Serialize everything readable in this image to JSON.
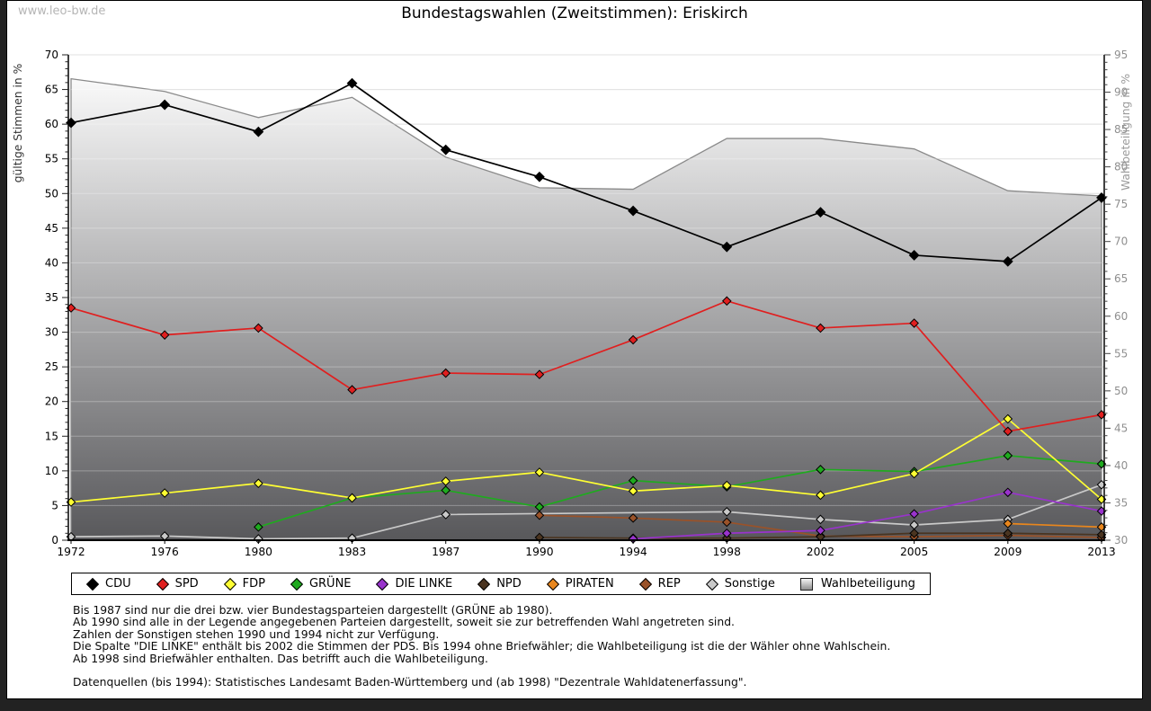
{
  "header": {
    "watermark": "www.leo-bw.de",
    "title": "Bundestagswahlen (Zweitstimmen): Eriskirch"
  },
  "chart_data": {
    "type": "line",
    "x": [
      1972,
      1976,
      1980,
      1983,
      1987,
      1990,
      1994,
      1998,
      2002,
      2005,
      2009,
      2013
    ],
    "ylabel_left": "gültige Stimmen in %",
    "ylabel_right": "Wahlbeteiligung in %",
    "ylim_left": [
      0,
      70
    ],
    "ylim_right": [
      30,
      95
    ],
    "grid": true,
    "legend_position": "bottom",
    "series": [
      {
        "name": "CDU",
        "color": "#000000",
        "marker": "diamond",
        "axis": "left",
        "values": [
          60.2,
          62.8,
          58.9,
          65.9,
          56.3,
          52.4,
          47.5,
          42.3,
          47.3,
          41.1,
          40.2,
          49.4
        ]
      },
      {
        "name": "SPD",
        "color": "#e01f1f",
        "marker": "diamond",
        "axis": "left",
        "values": [
          33.5,
          29.6,
          30.6,
          21.7,
          24.1,
          23.9,
          28.9,
          34.5,
          30.6,
          31.3,
          15.7,
          18.1
        ]
      },
      {
        "name": "FDP",
        "color": "#ffff33",
        "marker": "diamond",
        "axis": "left",
        "values": [
          5.5,
          6.8,
          8.2,
          6.1,
          8.5,
          9.8,
          7.1,
          7.9,
          6.5,
          9.6,
          17.5,
          5.9
        ]
      },
      {
        "name": "GRÜNE",
        "color": "#1faa1f",
        "marker": "diamond",
        "axis": "left",
        "values": [
          null,
          null,
          1.9,
          6.1,
          7.2,
          4.8,
          8.6,
          7.7,
          10.2,
          9.9,
          12.2,
          11.0
        ]
      },
      {
        "name": "DIE LINKE",
        "color": "#9933cc",
        "marker": "diamond",
        "axis": "left",
        "values": [
          null,
          null,
          null,
          null,
          null,
          null,
          0.2,
          1.0,
          1.4,
          3.8,
          6.9,
          4.2
        ]
      },
      {
        "name": "NPD",
        "color": "#4a3420",
        "marker": "diamond",
        "axis": "left",
        "values": [
          null,
          null,
          null,
          null,
          null,
          0.4,
          0.3,
          0.3,
          0.5,
          1.0,
          1.0,
          0.8
        ]
      },
      {
        "name": "PIRATEN",
        "color": "#e8861d",
        "marker": "diamond",
        "axis": "left",
        "values": [
          null,
          null,
          null,
          null,
          null,
          null,
          null,
          null,
          null,
          null,
          2.4,
          1.9
        ]
      },
      {
        "name": "REP",
        "color": "#9a5229",
        "marker": "diamond",
        "axis": "left",
        "values": [
          null,
          null,
          null,
          null,
          null,
          3.6,
          3.2,
          2.6,
          0.6,
          0.5,
          0.7,
          0.4
        ]
      },
      {
        "name": "Sonstige",
        "color": "#c9c9c9",
        "marker": "diamond",
        "axis": "left",
        "connect_gaps": true,
        "values": [
          0.5,
          0.6,
          0.2,
          0.3,
          3.7,
          null,
          null,
          4.1,
          3.0,
          2.2,
          3.0,
          8.0
        ]
      }
    ],
    "area_series": {
      "name": "Wahlbeteiligung",
      "axis": "right",
      "marker": "square",
      "fill_top": "#fcfcfc",
      "fill_bottom": "#58585b",
      "outline": "#8a8a8a",
      "values": [
        91.8,
        90.1,
        86.6,
        89.3,
        81.3,
        77.2,
        77.0,
        83.8,
        83.8,
        82.4,
        76.8,
        76.1
      ]
    }
  },
  "notes": [
    "Bis 1987 sind nur die drei bzw. vier Bundestagsparteien dargestellt (GRÜNE ab 1980).",
    "Ab 1990 sind alle in der Legende angegebenen Parteien dargestellt, soweit sie zur betreffenden Wahl angetreten sind.",
    "Zahlen der Sonstigen stehen 1990 und 1994 nicht zur Verfügung.",
    "Die Spalte \"DIE LINKE\" enthält bis 2002 die Stimmen der PDS. Bis 1994 ohne Briefwähler; die Wahlbeteiligung ist die der Wähler ohne Wahlschein.",
    "Ab 1998 sind Briefwähler enthalten. Das betrifft auch die Wahlbeteiligung."
  ],
  "source": "Datenquellen (bis 1994): Statistisches Landesamt Baden-Württemberg und (ab 1998) \"Dezentrale Wahldatenerfassung\"."
}
